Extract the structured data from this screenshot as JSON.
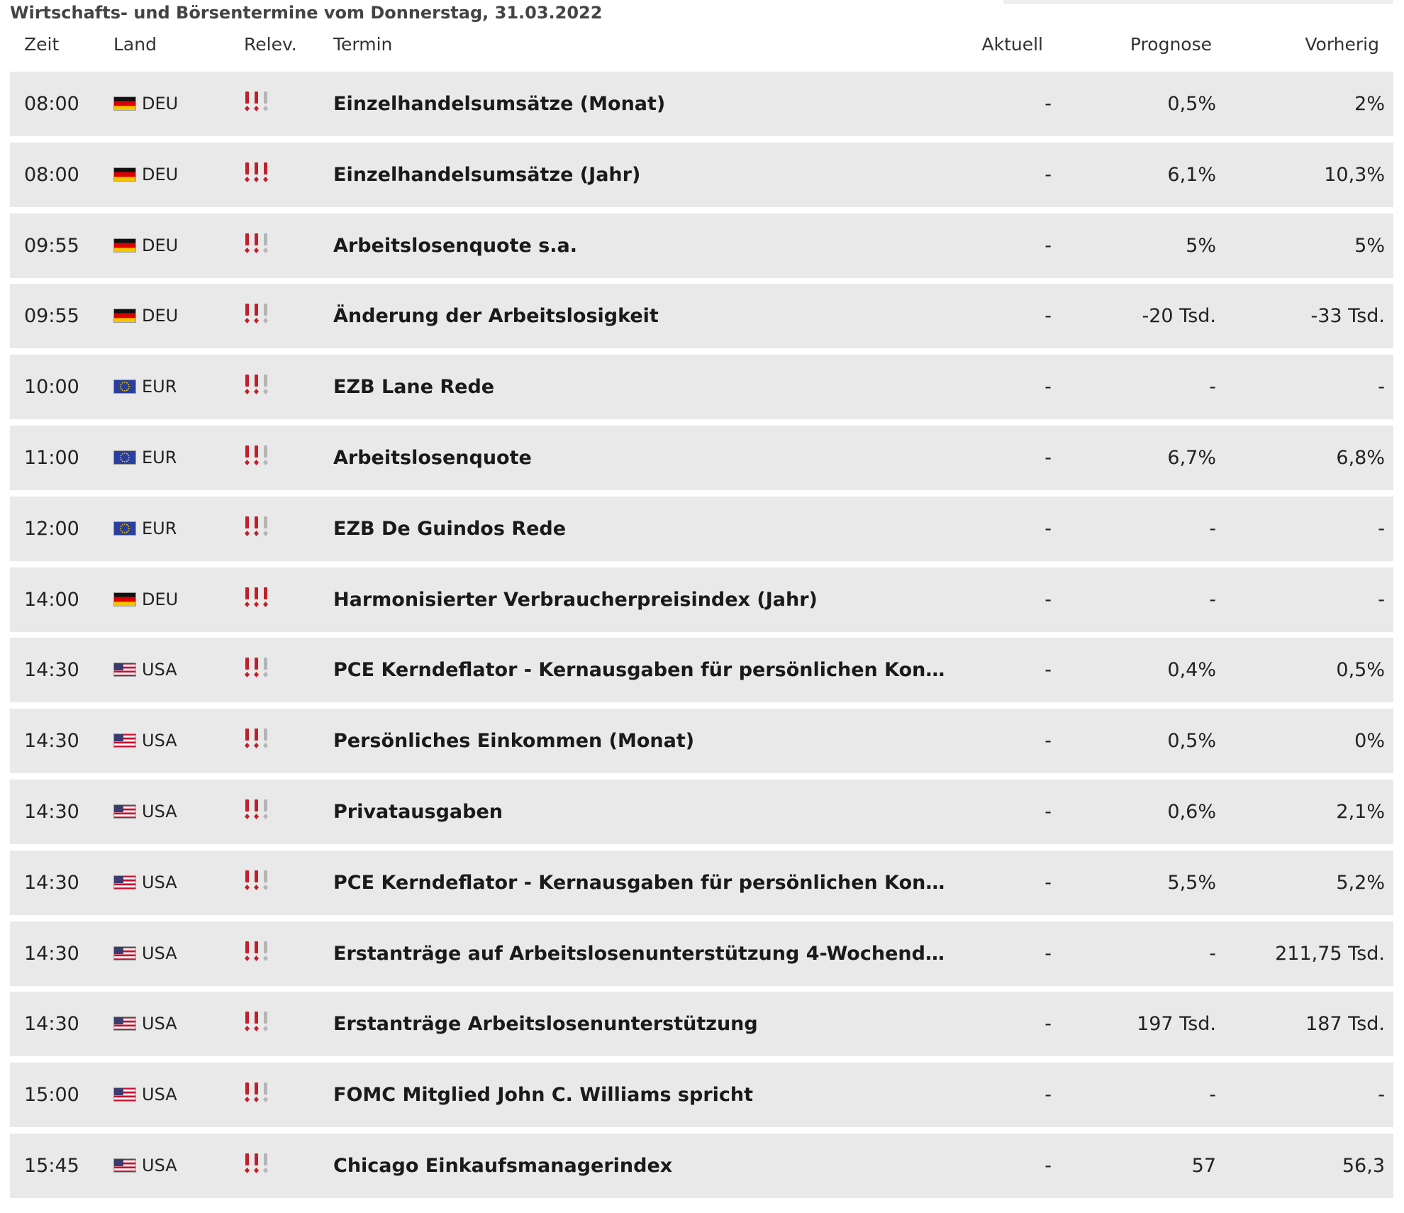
{
  "title": "Wirtschafts- und Börsentermine vom Donnerstag, 31.03.2022",
  "columns": {
    "time": "Zeit",
    "country": "Land",
    "relevance": "Relev.",
    "event": "Termin",
    "actual": "Aktuell",
    "forecast": "Prognose",
    "previous": "Vorherig"
  },
  "rows": [
    {
      "time": "08:00",
      "country": "DEU",
      "relevance": 2,
      "event": "Einzelhandelsumsätze (Monat)",
      "actual": "-",
      "forecast": "0,5%",
      "previous": "2%"
    },
    {
      "time": "08:00",
      "country": "DEU",
      "relevance": 3,
      "event": "Einzelhandelsumsätze (Jahr)",
      "actual": "-",
      "forecast": "6,1%",
      "previous": "10,3%"
    },
    {
      "time": "09:55",
      "country": "DEU",
      "relevance": 2,
      "event": "Arbeitslosenquote s.a.",
      "actual": "-",
      "forecast": "5%",
      "previous": "5%"
    },
    {
      "time": "09:55",
      "country": "DEU",
      "relevance": 2,
      "event": "Änderung der Arbeitslosigkeit",
      "actual": "-",
      "forecast": "-20 Tsd.",
      "previous": "-33 Tsd."
    },
    {
      "time": "10:00",
      "country": "EUR",
      "relevance": 2,
      "event": "EZB Lane Rede",
      "actual": "-",
      "forecast": "-",
      "previous": "-"
    },
    {
      "time": "11:00",
      "country": "EUR",
      "relevance": 2,
      "event": "Arbeitslosenquote",
      "actual": "-",
      "forecast": "6,7%",
      "previous": "6,8%"
    },
    {
      "time": "12:00",
      "country": "EUR",
      "relevance": 2,
      "event": "EZB De Guindos Rede",
      "actual": "-",
      "forecast": "-",
      "previous": "-"
    },
    {
      "time": "14:00",
      "country": "DEU",
      "relevance": 3,
      "event": "Harmonisierter Verbraucherpreisindex (Jahr)",
      "actual": "-",
      "forecast": "-",
      "previous": "-"
    },
    {
      "time": "14:30",
      "country": "USA",
      "relevance": 2,
      "event": "PCE Kerndeflator - Kernausgaben für persönlichen Kon…",
      "actual": "-",
      "forecast": "0,4%",
      "previous": "0,5%"
    },
    {
      "time": "14:30",
      "country": "USA",
      "relevance": 2,
      "event": "Persönliches Einkommen (Monat)",
      "actual": "-",
      "forecast": "0,5%",
      "previous": "0%"
    },
    {
      "time": "14:30",
      "country": "USA",
      "relevance": 2,
      "event": "Privatausgaben",
      "actual": "-",
      "forecast": "0,6%",
      "previous": "2,1%"
    },
    {
      "time": "14:30",
      "country": "USA",
      "relevance": 2,
      "event": "PCE Kerndeflator - Kernausgaben für persönlichen Kon…",
      "actual": "-",
      "forecast": "5,5%",
      "previous": "5,2%"
    },
    {
      "time": "14:30",
      "country": "USA",
      "relevance": 2,
      "event": "Erstanträge auf Arbeitslosenunterstützung 4-Wochend…",
      "actual": "-",
      "forecast": "-",
      "previous": "211,75 Tsd."
    },
    {
      "time": "14:30",
      "country": "USA",
      "relevance": 2,
      "event": "Erstanträge Arbeitslosenunterstützung",
      "actual": "-",
      "forecast": "197 Tsd.",
      "previous": "187 Tsd."
    },
    {
      "time": "15:00",
      "country": "USA",
      "relevance": 2,
      "event": "FOMC Mitglied John C. Williams spricht",
      "actual": "-",
      "forecast": "-",
      "previous": "-"
    },
    {
      "time": "15:45",
      "country": "USA",
      "relevance": 2,
      "event": "Chicago Einkaufsmanagerindex",
      "actual": "-",
      "forecast": "57",
      "previous": "56,3"
    }
  ]
}
